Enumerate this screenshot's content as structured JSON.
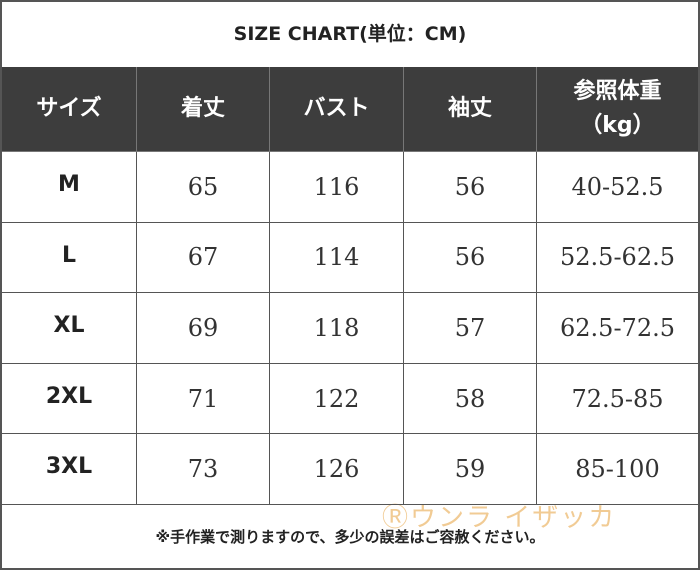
{
  "title": "SIZE CHART(単位：CM)",
  "table": {
    "header": [
      "サイズ",
      "着丈",
      "バスト",
      "袖丈",
      "参照体重\n（kg）"
    ],
    "rows": [
      [
        "M",
        "65",
        "116",
        "56",
        "40-52.5"
      ],
      [
        "L",
        "67",
        "114",
        "56",
        "52.5-62.5"
      ],
      [
        "XL",
        "69",
        "118",
        "57",
        "62.5-72.5"
      ],
      [
        "2XL",
        "71",
        "122",
        "58",
        "72.5-85"
      ],
      [
        "3XL",
        "73",
        "126",
        "59",
        "85-100"
      ]
    ]
  },
  "note": "※手作業で測りますので、多少の誤差はご容赦ください。",
  "watermark": "Ⓡウンラ イザッカ"
}
